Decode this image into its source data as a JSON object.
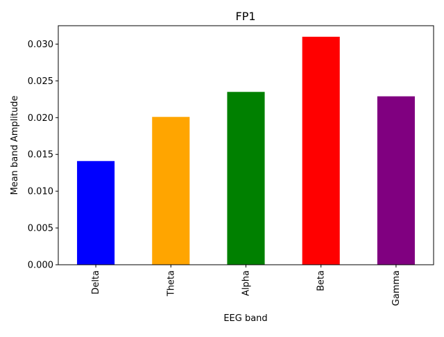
{
  "chart_data": {
    "type": "bar",
    "title": "FP1",
    "xlabel": "EEG band",
    "ylabel": "Mean band Amplitude",
    "categories": [
      "Delta",
      "Theta",
      "Alpha",
      "Beta",
      "Gamma"
    ],
    "values": [
      0.0141,
      0.0201,
      0.0235,
      0.031,
      0.0229
    ],
    "colors": [
      "#0000ff",
      "#ffa500",
      "#008000",
      "#ff0000",
      "#800080"
    ],
    "ylim": [
      0,
      0.0325
    ],
    "yticks": [
      "0.000",
      "0.005",
      "0.010",
      "0.015",
      "0.020",
      "0.025",
      "0.030"
    ],
    "grid": false,
    "legend": "none"
  }
}
